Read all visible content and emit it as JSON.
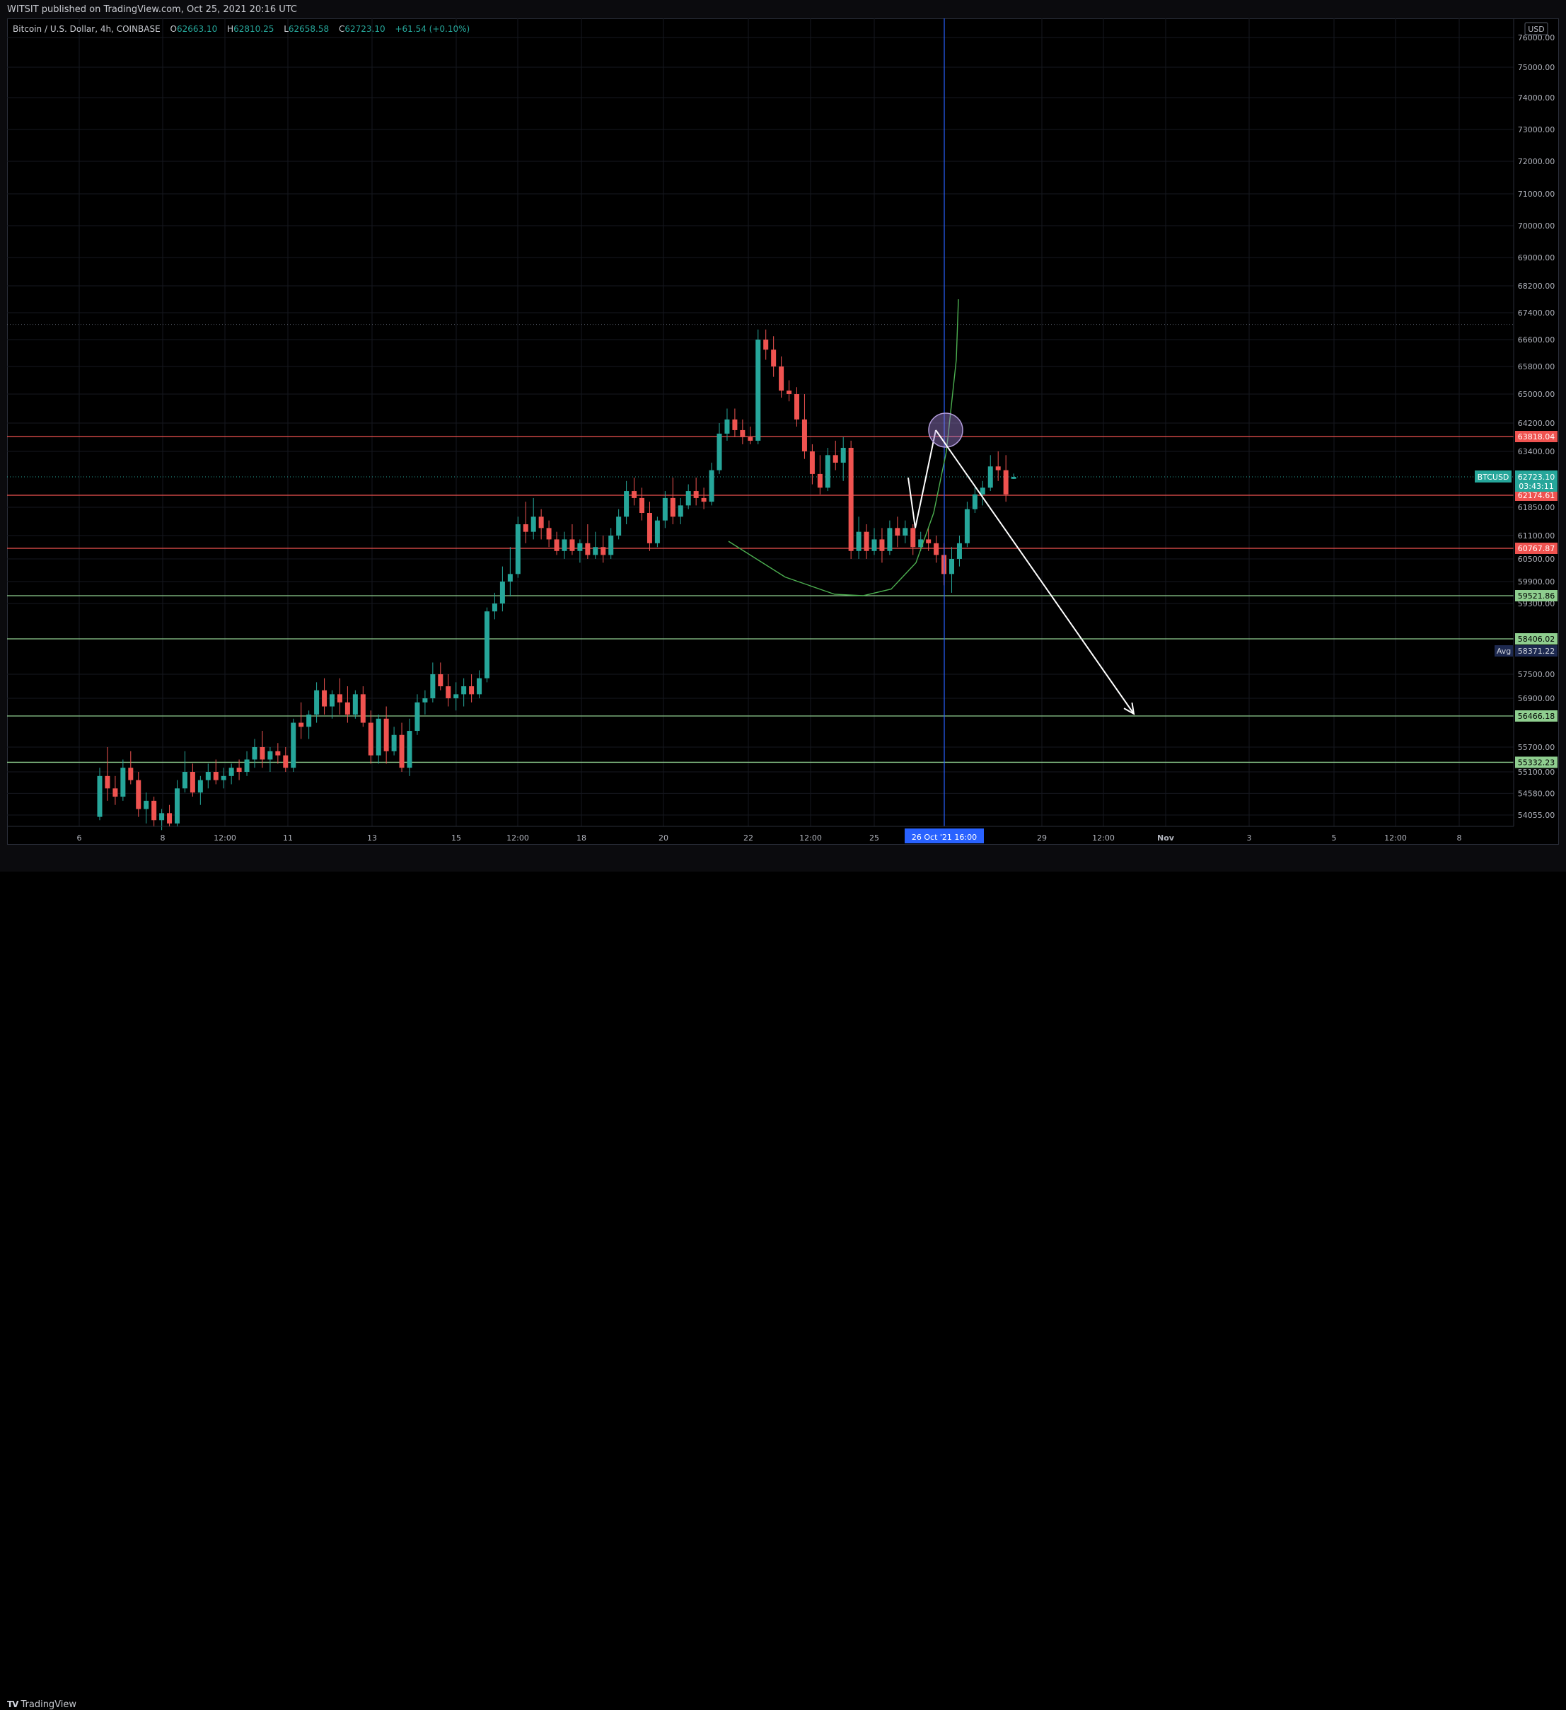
{
  "header": {
    "publish_text": "WITSIT published on TradingView.com, Oct 25, 2021 20:16 UTC"
  },
  "legend": {
    "symbol": "Bitcoin / U.S. Dollar, 4h, COINBASE",
    "open_label": "O",
    "open": "62663.10",
    "high_label": "H",
    "high": "62810.25",
    "low_label": "L",
    "low": "62658.58",
    "close_label": "C",
    "close": "62723.10",
    "change": "+61.54 (+0.10%)"
  },
  "footer": {
    "brand": "TradingView",
    "brand_mark": "TV"
  },
  "colors": {
    "up": "#26a69a",
    "down": "#ef5350",
    "resistance": "#ef5350",
    "support": "#8fce8f",
    "background": "#000000",
    "crosshair": "#2962ff",
    "arrow": "#ffffff"
  },
  "chart_data": {
    "type": "candlestick",
    "timeframe": "4h",
    "currency": "USD",
    "y_tick_labels": [
      "76000.00",
      "75000.00",
      "74000.00",
      "73000.00",
      "72000.00",
      "71000.00",
      "70000.00",
      "69000.00",
      "68200.00",
      "67400.00",
      "66600.00",
      "65800.00",
      "65000.00",
      "64200.00",
      "63400.00",
      "61850.00",
      "61100.00",
      "60500.00",
      "59900.00",
      "59300.00",
      "57500.00",
      "56900.00",
      "55700.00",
      "55100.00",
      "54580.00",
      "54055.00"
    ],
    "x_tick_labels": [
      "6",
      "8",
      "12:00",
      "11",
      "13",
      "15",
      "12:00",
      "18",
      "20",
      "22",
      "12:00",
      "25",
      "29",
      "12:00",
      "Nov",
      "3",
      "5",
      "12:00",
      "8"
    ],
    "x_tick_strong": [
      false,
      false,
      false,
      false,
      false,
      false,
      false,
      false,
      false,
      false,
      false,
      false,
      false,
      false,
      true,
      false,
      false,
      false,
      false
    ],
    "crosshair_label": "26 Oct '21   16:00",
    "last_price": {
      "symbol": "BTCUSD",
      "value": "62723.10",
      "countdown": "03:43:11"
    },
    "avg_label": {
      "tag": "Avg",
      "value": "58371.22"
    },
    "price_lines": [
      {
        "value": "63818.04",
        "kind": "resistance"
      },
      {
        "value": "62174.61",
        "kind": "resistance"
      },
      {
        "value": "60767.87",
        "kind": "resistance"
      },
      {
        "value": "59521.86",
        "kind": "support"
      },
      {
        "value": "58406.02",
        "kind": "support"
      },
      {
        "value": "56466.18",
        "kind": "support"
      },
      {
        "value": "55332.23",
        "kind": "support"
      }
    ],
    "candles": [
      [
        54000,
        55200,
        53900,
        55000
      ],
      [
        55000,
        55700,
        54400,
        54700
      ],
      [
        54700,
        55000,
        54300,
        54500
      ],
      [
        54500,
        55400,
        54400,
        55200
      ],
      [
        55200,
        55600,
        54800,
        54900
      ],
      [
        54900,
        55100,
        54000,
        54200
      ],
      [
        54200,
        54600,
        53800,
        54400
      ],
      [
        54400,
        54500,
        53700,
        53900
      ],
      [
        53900,
        54200,
        53600,
        54100
      ],
      [
        54100,
        54300,
        53700,
        53800
      ],
      [
        53800,
        54900,
        53700,
        54700
      ],
      [
        54700,
        55600,
        54600,
        55100
      ],
      [
        55100,
        55300,
        54500,
        54600
      ],
      [
        54600,
        55000,
        54300,
        54900
      ],
      [
        54900,
        55300,
        54700,
        55100
      ],
      [
        55100,
        55400,
        54800,
        54900
      ],
      [
        54900,
        55200,
        54700,
        55000
      ],
      [
        55000,
        55300,
        54800,
        55200
      ],
      [
        55200,
        55400,
        54900,
        55100
      ],
      [
        55100,
        55600,
        55000,
        55400
      ],
      [
        55400,
        55900,
        55200,
        55700
      ],
      [
        55700,
        56100,
        55200,
        55400
      ],
      [
        55400,
        55700,
        55100,
        55600
      ],
      [
        55600,
        55800,
        55300,
        55500
      ],
      [
        55500,
        55700,
        55100,
        55200
      ],
      [
        55200,
        56400,
        55100,
        56300
      ],
      [
        56300,
        56800,
        55900,
        56200
      ],
      [
        56200,
        56600,
        55900,
        56500
      ],
      [
        56500,
        57300,
        56300,
        57100
      ],
      [
        57100,
        57400,
        56500,
        56700
      ],
      [
        56700,
        57100,
        56400,
        57000
      ],
      [
        57000,
        57400,
        56500,
        56800
      ],
      [
        56800,
        57200,
        56300,
        56500
      ],
      [
        56500,
        57100,
        56400,
        57000
      ],
      [
        57000,
        57200,
        56200,
        56300
      ],
      [
        56300,
        56600,
        55300,
        55500
      ],
      [
        55500,
        56500,
        55300,
        56400
      ],
      [
        56400,
        56700,
        55300,
        55600
      ],
      [
        55600,
        56200,
        55500,
        56000
      ],
      [
        56000,
        56300,
        55100,
        55200
      ],
      [
        55200,
        56400,
        55000,
        56100
      ],
      [
        56100,
        57000,
        56000,
        56800
      ],
      [
        56800,
        57100,
        56500,
        56900
      ],
      [
        56900,
        57800,
        56800,
        57500
      ],
      [
        57500,
        57800,
        57100,
        57200
      ],
      [
        57200,
        57500,
        56700,
        56900
      ],
      [
        56900,
        57300,
        56600,
        57000
      ],
      [
        57000,
        57400,
        56700,
        57200
      ],
      [
        57200,
        57500,
        56800,
        57000
      ],
      [
        57000,
        57600,
        56900,
        57400
      ],
      [
        57400,
        59200,
        57300,
        59100
      ],
      [
        59100,
        59600,
        58900,
        59300
      ],
      [
        59300,
        60300,
        59100,
        59900
      ],
      [
        59900,
        60800,
        59500,
        60100
      ],
      [
        60100,
        61600,
        60000,
        61400
      ],
      [
        61400,
        62000,
        60900,
        61200
      ],
      [
        61200,
        62100,
        61000,
        61600
      ],
      [
        61600,
        61800,
        61000,
        61300
      ],
      [
        61300,
        61500,
        60800,
        61000
      ],
      [
        61000,
        61200,
        60600,
        60700
      ],
      [
        60700,
        61200,
        60500,
        61000
      ],
      [
        61000,
        61400,
        60600,
        60700
      ],
      [
        60700,
        61000,
        60400,
        60900
      ],
      [
        60900,
        61400,
        60500,
        60600
      ],
      [
        60600,
        61200,
        60500,
        60800
      ],
      [
        60800,
        61100,
        60400,
        60600
      ],
      [
        60600,
        61300,
        60500,
        61100
      ],
      [
        61100,
        61800,
        61000,
        61600
      ],
      [
        61600,
        62600,
        61400,
        62300
      ],
      [
        62300,
        62700,
        61900,
        62100
      ],
      [
        62100,
        62400,
        61500,
        61700
      ],
      [
        61700,
        62000,
        60700,
        60900
      ],
      [
        60900,
        61600,
        60800,
        61500
      ],
      [
        61500,
        62300,
        61300,
        62100
      ],
      [
        62100,
        62700,
        61400,
        61600
      ],
      [
        61600,
        62100,
        61400,
        61900
      ],
      [
        61900,
        62500,
        61800,
        62300
      ],
      [
        62300,
        62700,
        61900,
        62100
      ],
      [
        62100,
        62400,
        61800,
        62000
      ],
      [
        62000,
        63100,
        61900,
        62900
      ],
      [
        62900,
        64200,
        62800,
        63900
      ],
      [
        63900,
        64600,
        63700,
        64300
      ],
      [
        64300,
        64600,
        63800,
        64000
      ],
      [
        64000,
        64300,
        63600,
        63800
      ],
      [
        63800,
        64100,
        63600,
        63700
      ],
      [
        63700,
        66900,
        63600,
        66600
      ],
      [
        66600,
        66900,
        66000,
        66300
      ],
      [
        66300,
        66700,
        65500,
        65800
      ],
      [
        65800,
        66100,
        64900,
        65100
      ],
      [
        65100,
        65400,
        64800,
        65000
      ],
      [
        65000,
        65200,
        64100,
        64300
      ],
      [
        64300,
        65000,
        63200,
        63400
      ],
      [
        63400,
        63600,
        62500,
        62800
      ],
      [
        62800,
        63300,
        62200,
        62400
      ],
      [
        62400,
        63500,
        62300,
        63300
      ],
      [
        63300,
        63700,
        62900,
        63100
      ],
      [
        63100,
        63800,
        62600,
        63500
      ],
      [
        63500,
        63700,
        60500,
        60700
      ],
      [
        60700,
        61600,
        60500,
        61200
      ],
      [
        61200,
        61400,
        60500,
        60700
      ],
      [
        60700,
        61300,
        60600,
        61000
      ],
      [
        61000,
        61300,
        60400,
        60700
      ],
      [
        60700,
        61500,
        60600,
        61300
      ],
      [
        61300,
        61600,
        60800,
        61100
      ],
      [
        61100,
        61500,
        60900,
        61300
      ],
      [
        61300,
        61400,
        60600,
        60800
      ],
      [
        60800,
        61200,
        60700,
        61000
      ],
      [
        61000,
        61300,
        60700,
        60900
      ],
      [
        60900,
        61100,
        60400,
        60600
      ],
      [
        60600,
        60900,
        59800,
        60100
      ],
      [
        60100,
        60800,
        59600,
        60500
      ],
      [
        60500,
        61100,
        60300,
        60900
      ],
      [
        60900,
        62000,
        60800,
        61800
      ],
      [
        61800,
        62400,
        61700,
        62200
      ],
      [
        62200,
        62600,
        61900,
        62400
      ],
      [
        62400,
        63300,
        62300,
        63000
      ],
      [
        63000,
        63400,
        62600,
        62900
      ],
      [
        62900,
        63300,
        62000,
        62200
      ],
      [
        62663.1,
        62810.25,
        62658.58,
        62723.1
      ]
    ]
  }
}
